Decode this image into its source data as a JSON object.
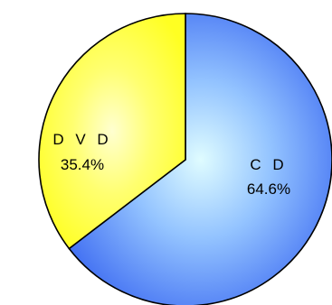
{
  "chart_data": {
    "type": "pie",
    "slices": [
      {
        "label": "CD",
        "display_label": "C D",
        "value": 64.6,
        "value_label": "64.6%",
        "color": "#4d7cf3"
      },
      {
        "label": "DVD",
        "display_label": "D V D",
        "value": 35.4,
        "value_label": "35.4%",
        "color": "#ffff33"
      }
    ],
    "start": "top",
    "direction": "clockwise",
    "legend": "none",
    "title": ""
  }
}
